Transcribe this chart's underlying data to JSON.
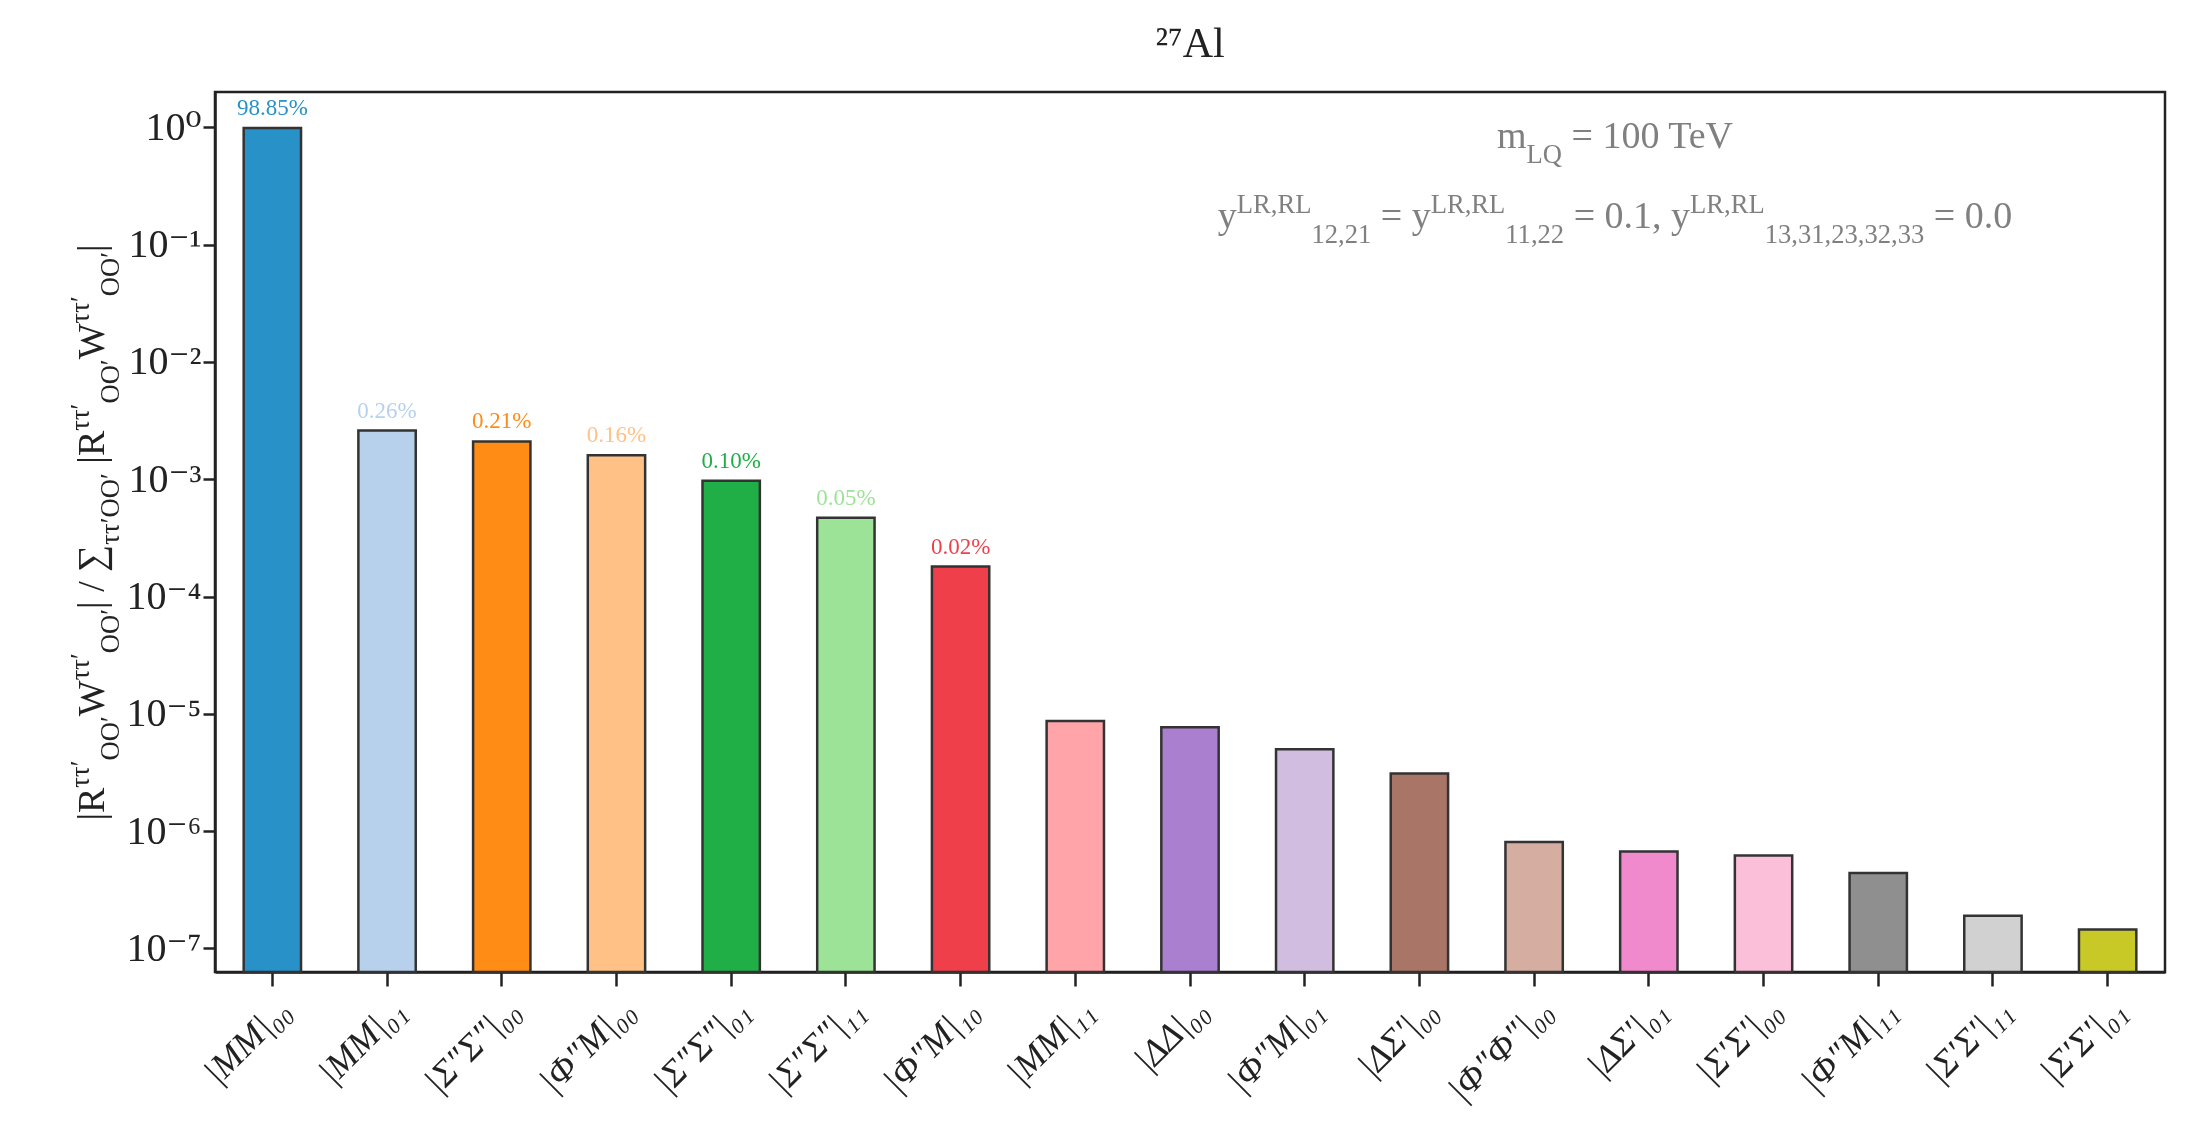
{
  "chart_data": {
    "type": "bar",
    "title": "²⁷Al",
    "ylabel": "|R$^{ττ′}$$_{OO′}$W$^{ττ′}$$_{OO′}$| / ∑$_{ττ′OO′}$ |R$^{ττ′}$$_{OO′}$W$^{ττ′}$$_{OO′}$|",
    "annotations": [
      "m$_{LQ}$ = 100 TeV",
      "y$^{LR,RL}$$_{12,21}$ = y$^{LR,RL}$$_{11,22}$ = 0.1,   y$^{LR,RL}$$_{13,31,23,32,33}$ = 0.0"
    ],
    "categories": [
      "|MM|₀₀",
      "|MM|₀₁",
      "|Σ″Σ″|₀₀",
      "|Φ″M|₀₀",
      "|Σ″Σ″|₀₁",
      "|Σ″Σ″|₁₁",
      "|Φ″M|₁₀",
      "|MM|₁₁",
      "|ΔΔ|₀₀",
      "|Φ″M|₀₁",
      "|ΔΣ′|₀₀",
      "|Φ″Φ″|₀₀",
      "|ΔΣ′|₀₁",
      "|Σ′Σ′|₀₀",
      "|Φ″M|₁₁",
      "|Σ′Σ′|₁₁",
      "|Σ′Σ′|₀₁"
    ],
    "values": [
      0.9885,
      0.0026,
      0.0021,
      0.0016,
      0.00097,
      0.00047,
      0.00018,
      8.7e-06,
      7.7e-06,
      5e-06,
      3.1e-06,
      8.1e-07,
      6.7e-07,
      6.2e-07,
      4.4e-07,
      1.9e-07,
      1.45e-07
    ],
    "value_labels": [
      "98.85%",
      "0.26%",
      "0.21%",
      "0.16%",
      "0.10%",
      "0.05%",
      "0.02%",
      null,
      null,
      null,
      null,
      null,
      null,
      null,
      null,
      null,
      null
    ],
    "colors": [
      "#2891c7",
      "#b7d1ed",
      "#ff8c15",
      "#ffc186",
      "#20ae47",
      "#9de397",
      "#ef3f4a",
      "#ffa4a9",
      "#ab7fcf",
      "#d0bddf",
      "#a87567",
      "#d5aea1",
      "#f18acd",
      "#fcbfd9",
      "#8f8f8f",
      "#d1d1d1",
      "#c8c826"
    ],
    "log": true,
    "ylim": [
      6.3e-08,
      2
    ],
    "yticks": [
      {
        "value": 1,
        "label": "10⁰"
      },
      {
        "value": 0.1,
        "label": "10⁻¹"
      },
      {
        "value": 0.01,
        "label": "10⁻²"
      },
      {
        "value": 0.001,
        "label": "10⁻³"
      },
      {
        "value": 0.0001,
        "label": "10⁻⁴"
      },
      {
        "value": 1e-05,
        "label": "10⁻⁵"
      },
      {
        "value": 1e-06,
        "label": "10⁻⁶"
      },
      {
        "value": 1e-07,
        "label": "10⁻⁷"
      }
    ],
    "grid": false
  }
}
